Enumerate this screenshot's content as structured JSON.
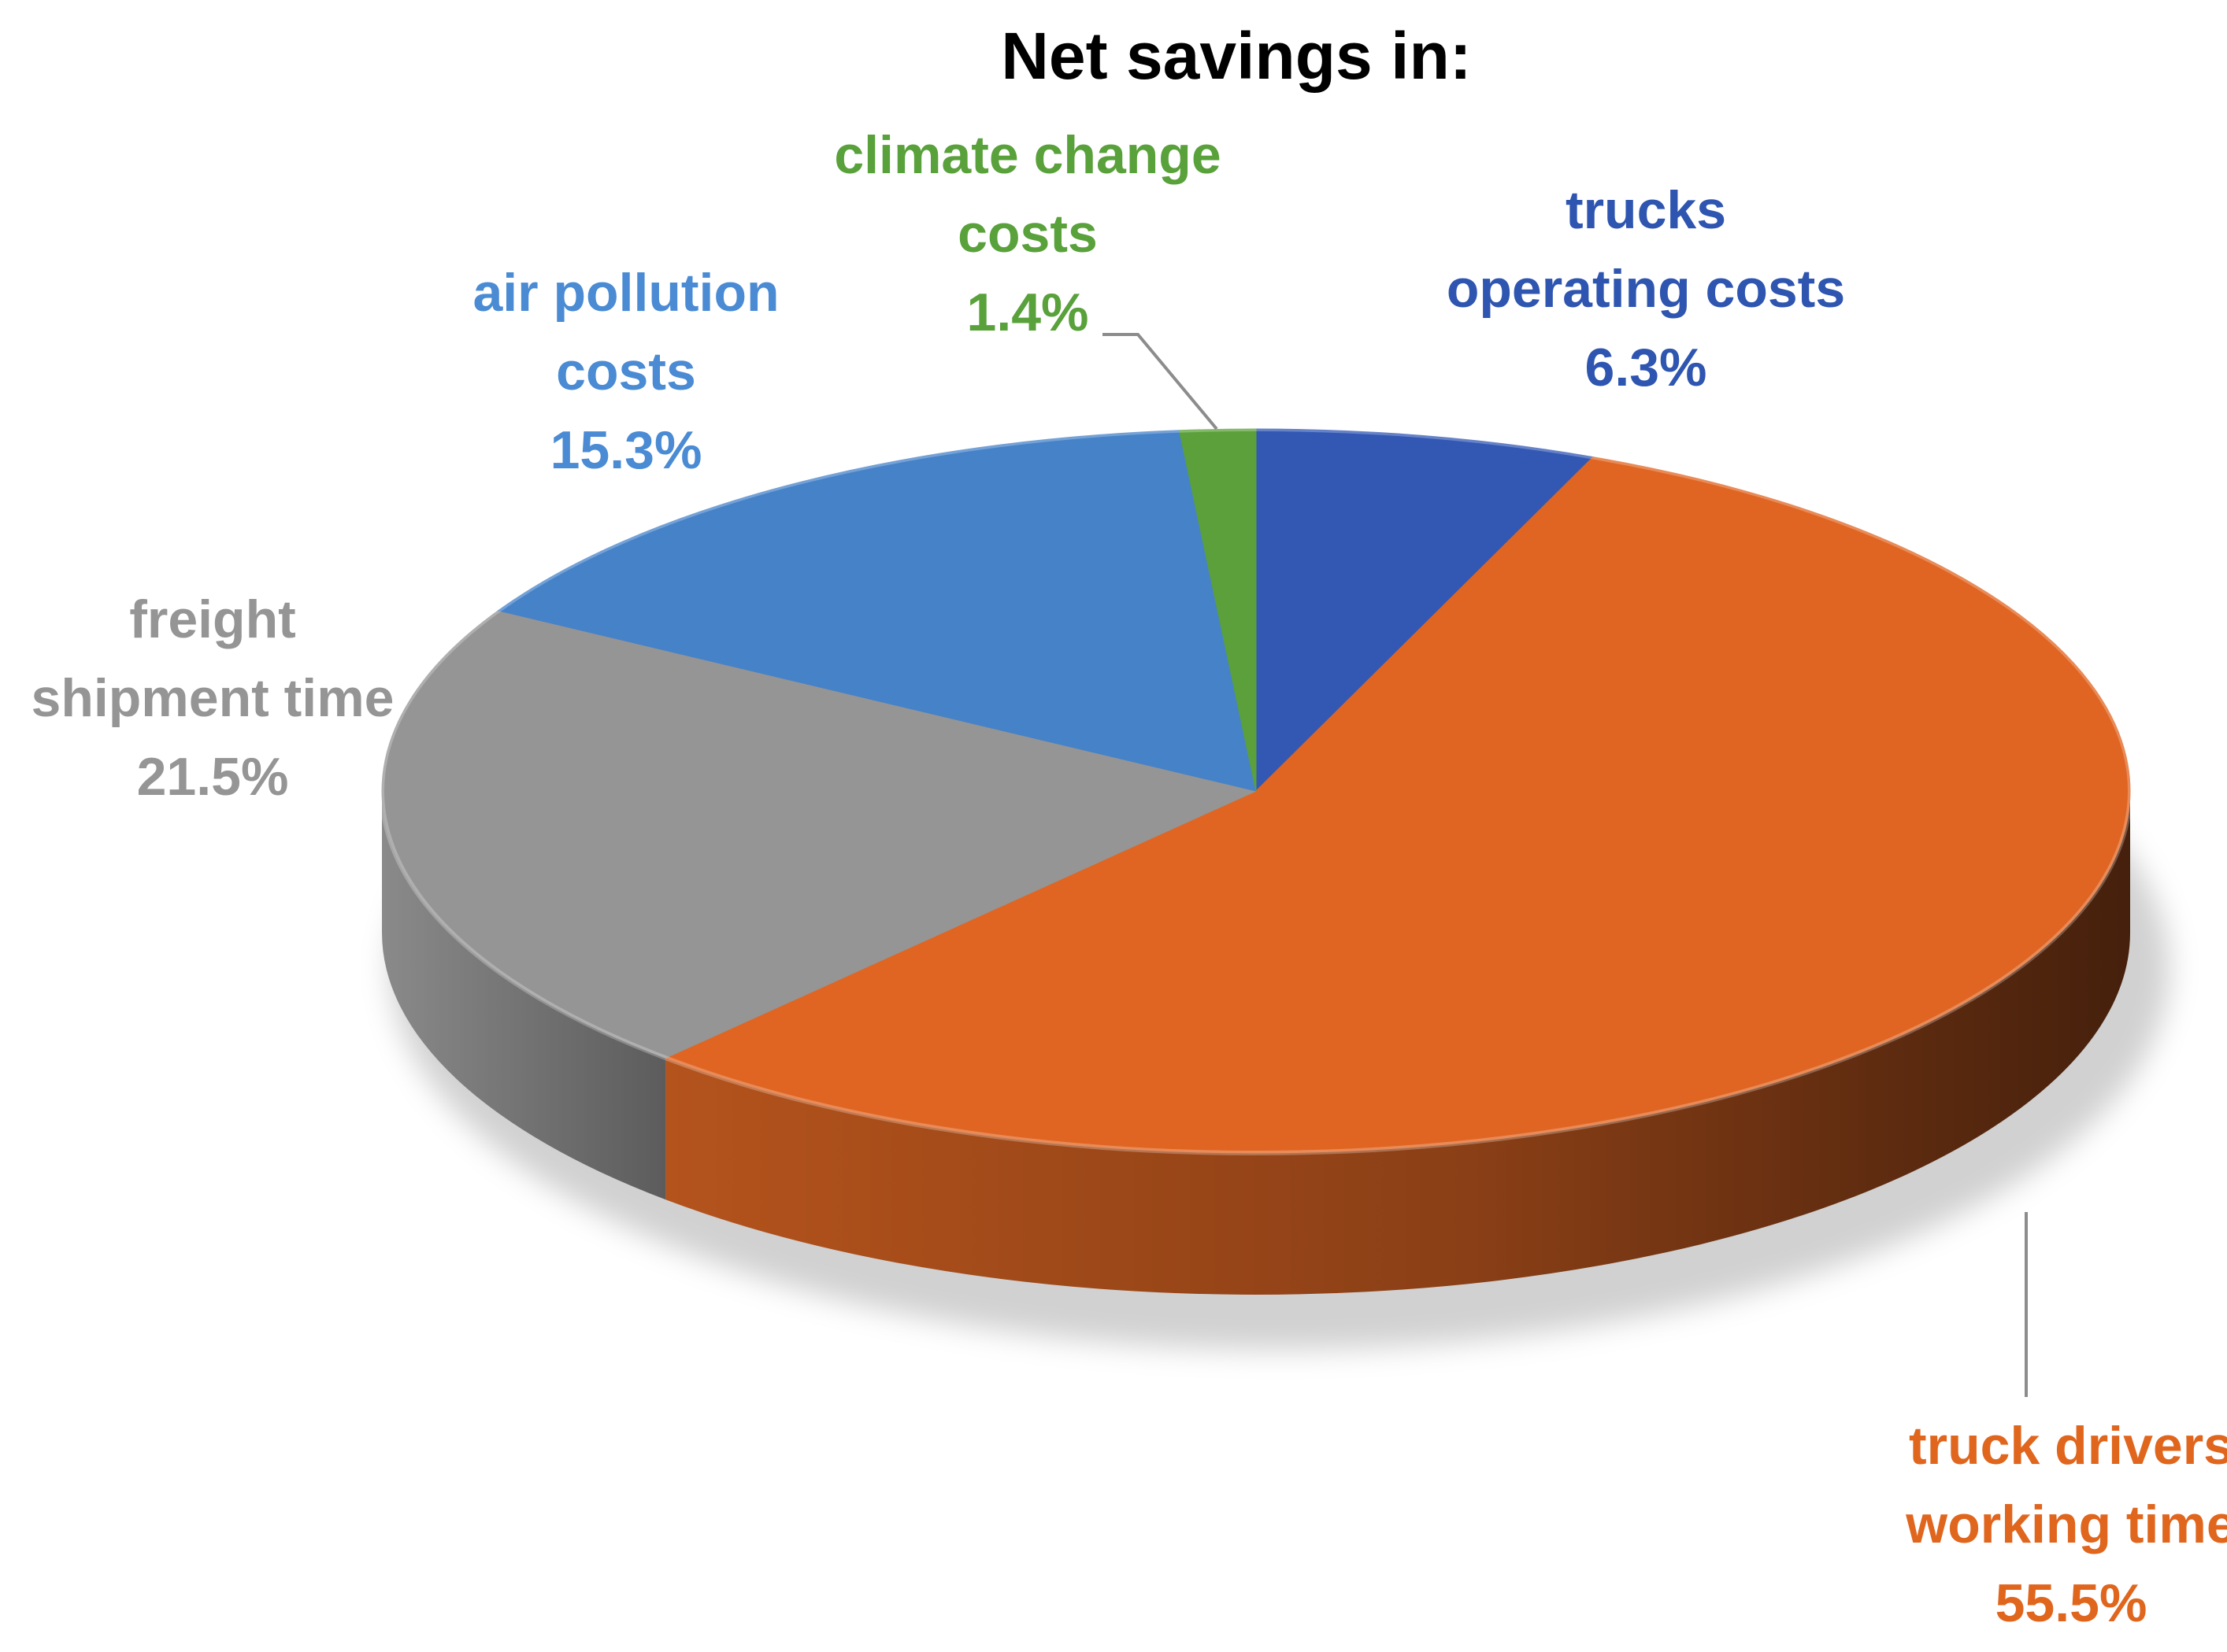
{
  "chart_data": {
    "type": "pie",
    "title": "Net savings in:",
    "slices": [
      {
        "label": [
          "trucks",
          "operating costs"
        ],
        "value": 6.3,
        "value_text": "6.3%",
        "color": "#3358b4"
      },
      {
        "label": [
          "truck drivers",
          "working time"
        ],
        "value": 55.5,
        "value_text": "55.5%",
        "color": "#e06522"
      },
      {
        "label": [
          "freight",
          "shipment time"
        ],
        "value": 21.5,
        "value_text": "21.5%",
        "color": "#959595"
      },
      {
        "label": [
          "air pollution",
          "costs"
        ],
        "value": 15.3,
        "value_text": "15.3%",
        "color": "#4682c8"
      },
      {
        "label": [
          "climate change",
          "costs"
        ],
        "value": 1.4,
        "value_text": "1.4%",
        "color": "#5ba03a"
      }
    ],
    "label_colors": [
      "#2e55b0",
      "#e0661e",
      "#959595",
      "#4a8bd4",
      "#59a13a"
    ],
    "style": "3d",
    "legend": "none"
  }
}
